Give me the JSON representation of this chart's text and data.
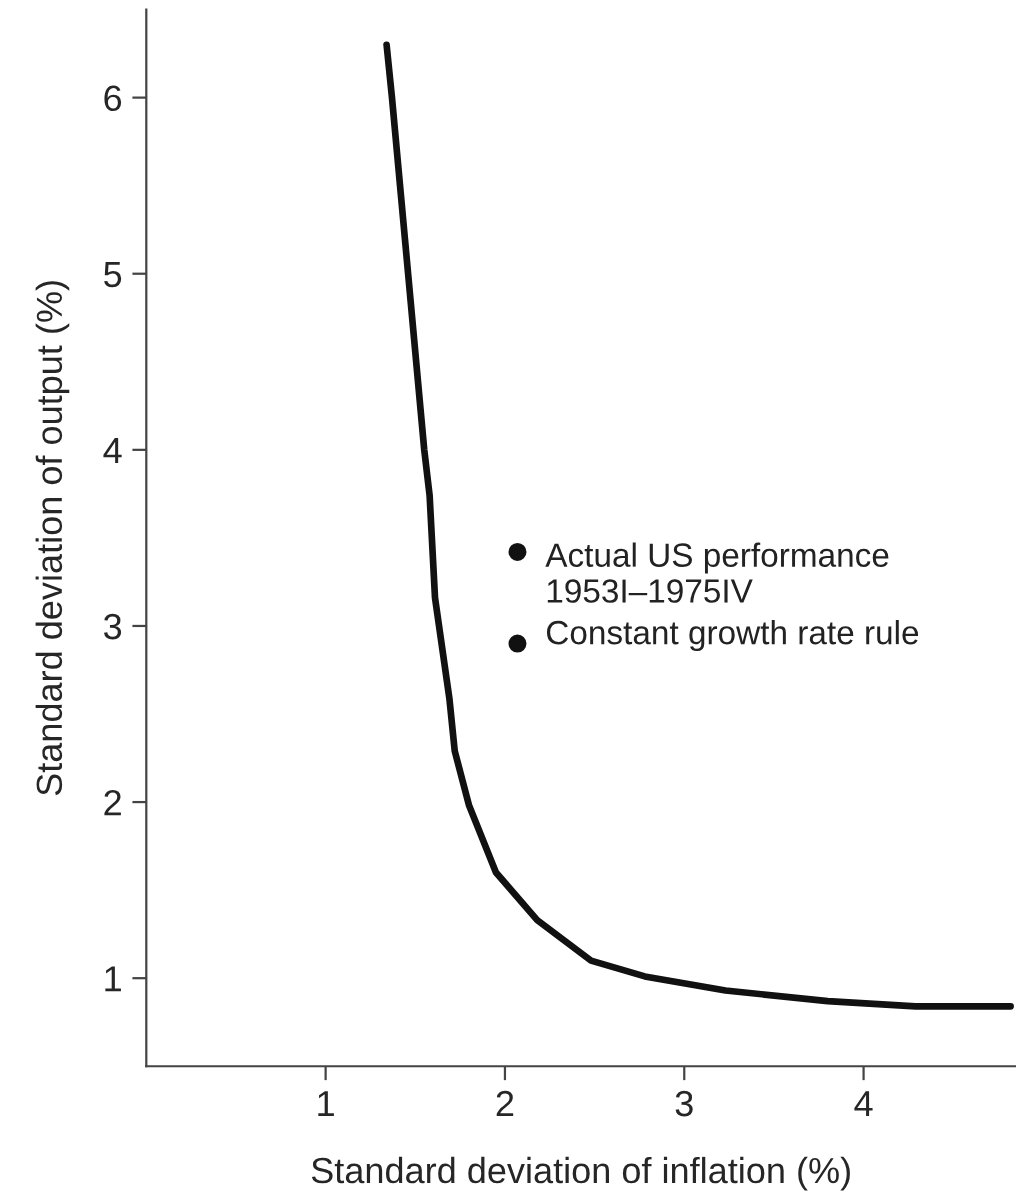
{
  "chart_data": {
    "type": "line",
    "xlabel": "Standard deviation of inflation (%)",
    "ylabel": "Standard deviation of output (%)",
    "xlim": [
      0,
      4.85
    ],
    "ylim": [
      0.5,
      6.5
    ],
    "xticks": [
      1,
      2,
      3,
      4
    ],
    "yticks": [
      1,
      2,
      3,
      4,
      5,
      6
    ],
    "grid": false,
    "legend": false,
    "series": [
      {
        "color": "#111111",
        "x": [
          1.34,
          1.37,
          1.46,
          1.55,
          1.58,
          1.61,
          1.69,
          1.72,
          1.8,
          1.95,
          2.18,
          2.48,
          2.78,
          3.23,
          3.8,
          4.29,
          4.82
        ],
        "values": [
          6.3,
          6.0,
          5.0,
          4.0,
          3.74,
          3.16,
          2.59,
          2.29,
          1.98,
          1.6,
          1.33,
          1.1,
          1.01,
          0.93,
          0.87,
          0.84,
          0.84
        ]
      },
      {
        "type": "scatter",
        "color": "#111111",
        "marker": "circle",
        "x": [
          2.07
        ],
        "values": [
          3.42
        ]
      },
      {
        "type": "scatter",
        "color": "#111111",
        "marker": "circle",
        "x": [
          2.07
        ],
        "values": [
          2.9
        ]
      }
    ],
    "annotations": [
      {
        "text": "Actual US performance\n1953I–1975IV",
        "x": 2.07,
        "y": 3.42
      },
      {
        "text": "Constant growth rate rule",
        "x": 2.07,
        "y": 2.9
      }
    ]
  }
}
